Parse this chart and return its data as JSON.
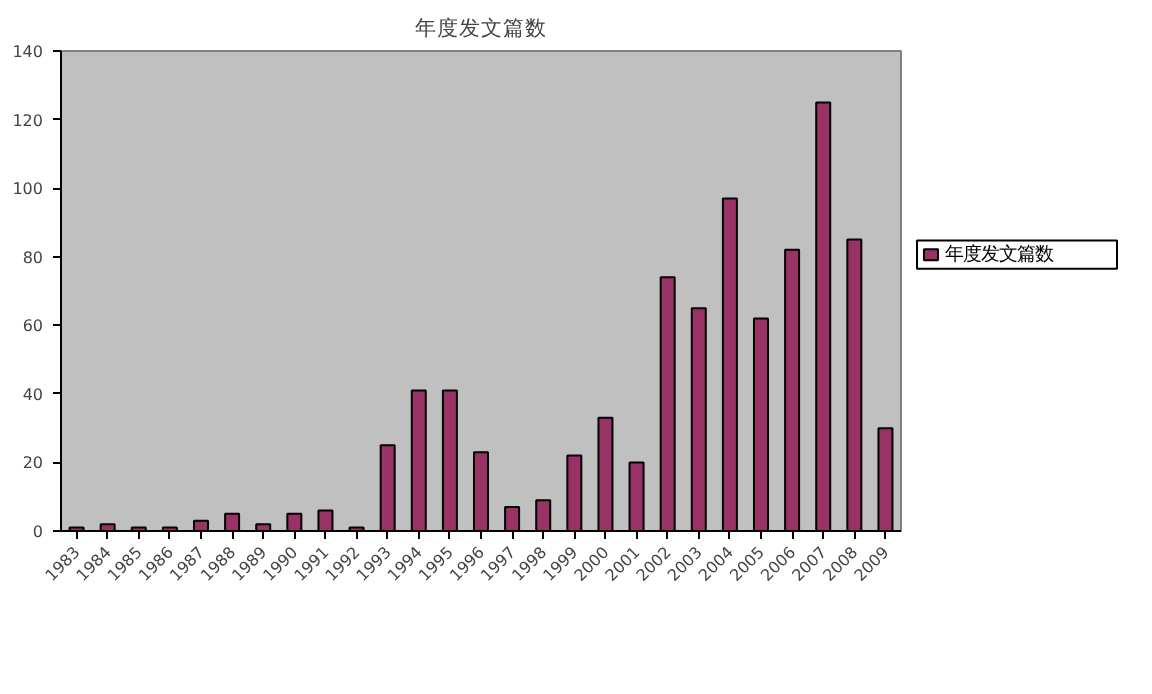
{
  "chart_data": {
    "type": "bar",
    "title": "年度发文篇数",
    "categories": [
      "1983",
      "1984",
      "1985",
      "1986",
      "1987",
      "1988",
      "1989",
      "1990",
      "1991",
      "1992",
      "1993",
      "1994",
      "1995",
      "1996",
      "1997",
      "1998",
      "1999",
      "2000",
      "2001",
      "2002",
      "2003",
      "2004",
      "2005",
      "2006",
      "2007",
      "2008",
      "2009"
    ],
    "series": [
      {
        "name": "年度发文篇数",
        "color": "#993366",
        "values": [
          1,
          2,
          1,
          1,
          3,
          5,
          2,
          5,
          6,
          1,
          25,
          41,
          41,
          23,
          7,
          9,
          22,
          33,
          20,
          74,
          65,
          97,
          62,
          82,
          125,
          85,
          30
        ]
      }
    ],
    "ylim": [
      0,
      140
    ],
    "yticks": [
      0,
      20,
      40,
      60,
      80,
      100,
      120,
      140
    ],
    "grid": false,
    "legend": "right"
  }
}
